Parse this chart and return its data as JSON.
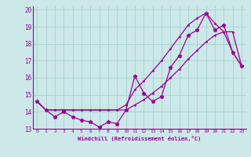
{
  "xlabel": "Windchill (Refroidissement éolien,°C)",
  "bg_color": "#cce8e8",
  "grid_color": "#aad4d4",
  "line_color": "#990099",
  "xlim": [
    -0.5,
    23.5
  ],
  "ylim": [
    13.0,
    20.2
  ],
  "xticks": [
    0,
    1,
    2,
    3,
    4,
    5,
    6,
    7,
    8,
    9,
    10,
    11,
    12,
    13,
    14,
    15,
    16,
    17,
    18,
    19,
    20,
    21,
    22,
    23
  ],
  "yticks": [
    13,
    14,
    15,
    16,
    17,
    18,
    19,
    20
  ],
  "series1_x": [
    0,
    1,
    2,
    3,
    4,
    5,
    6,
    7,
    8,
    9,
    10,
    11,
    12,
    13,
    14,
    15,
    16,
    17,
    18,
    19,
    20,
    21,
    22,
    23
  ],
  "series1_y": [
    14.6,
    14.1,
    13.7,
    14.0,
    13.7,
    13.5,
    13.4,
    13.1,
    13.4,
    13.3,
    14.1,
    16.1,
    15.1,
    14.6,
    14.9,
    16.6,
    17.3,
    18.5,
    18.8,
    19.8,
    18.8,
    19.1,
    17.5,
    16.7
  ],
  "series2_x": [
    0,
    1,
    2,
    3,
    4,
    5,
    6,
    7,
    8,
    9,
    10,
    11,
    12,
    13,
    14,
    15,
    16,
    17,
    18,
    19,
    20,
    21,
    22,
    23
  ],
  "series2_y": [
    14.6,
    14.1,
    14.1,
    14.1,
    14.1,
    14.1,
    14.1,
    14.1,
    14.1,
    14.1,
    14.1,
    14.4,
    14.7,
    15.1,
    15.5,
    16.0,
    16.5,
    17.1,
    17.6,
    18.1,
    18.5,
    18.7,
    18.7,
    16.7
  ],
  "series3_x": [
    0,
    1,
    2,
    3,
    4,
    5,
    6,
    7,
    8,
    9,
    10,
    11,
    12,
    13,
    14,
    15,
    16,
    17,
    18,
    19,
    20,
    21,
    22,
    23
  ],
  "series3_y": [
    14.6,
    14.1,
    14.1,
    14.1,
    14.1,
    14.1,
    14.1,
    14.1,
    14.1,
    14.1,
    14.4,
    15.3,
    15.8,
    16.4,
    17.0,
    17.7,
    18.4,
    19.1,
    19.5,
    19.8,
    19.2,
    18.7,
    17.5,
    16.7
  ]
}
